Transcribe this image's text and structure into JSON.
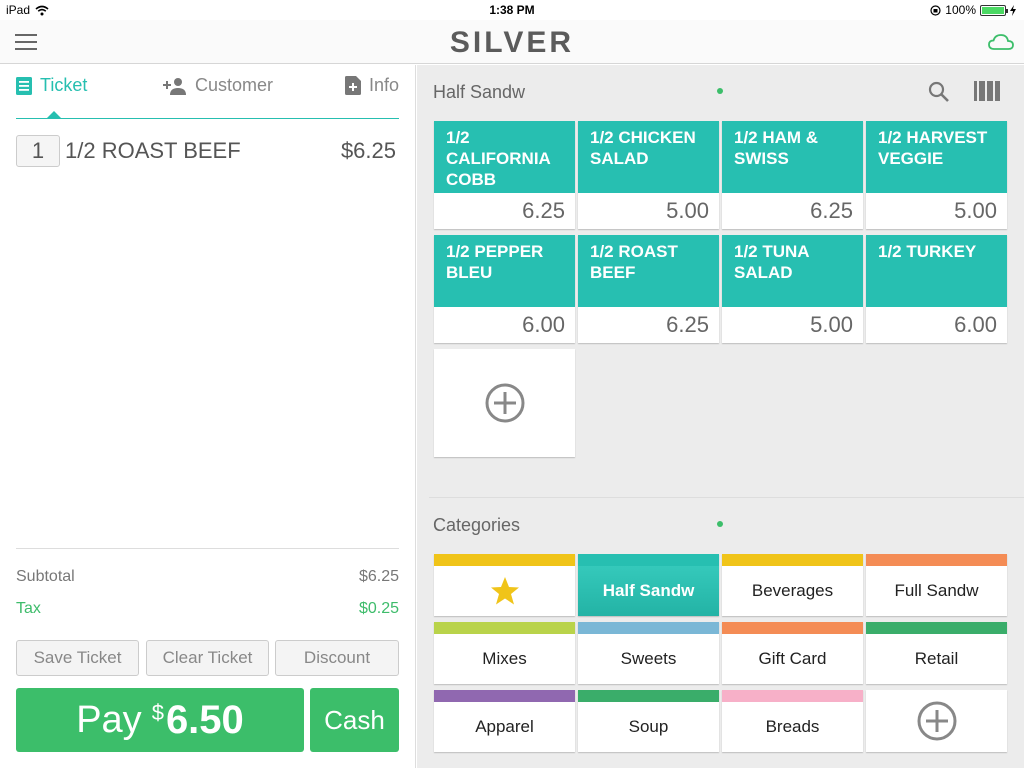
{
  "status_bar": {
    "device": "iPad",
    "time": "1:38 PM",
    "battery": "100%"
  },
  "nav": {
    "logo": "SILVER"
  },
  "tabs": [
    {
      "label": "Ticket",
      "icon": "list-icon",
      "active": true
    },
    {
      "label": "Customer",
      "icon": "add-person-icon",
      "active": false
    },
    {
      "label": "Info",
      "icon": "document-plus-icon",
      "active": false
    }
  ],
  "ticket": {
    "lines": [
      {
        "qty": "1",
        "name": "1/2 ROAST BEEF",
        "price": "$6.25"
      }
    ],
    "subtotal_label": "Subtotal",
    "subtotal": "$6.25",
    "tax_label": "Tax",
    "tax": "$0.25"
  },
  "actions": {
    "save": "Save Ticket",
    "clear": "Clear Ticket",
    "discount": "Discount"
  },
  "pay": {
    "label": "Pay",
    "currency": "$",
    "amount": "6.50",
    "cash": "Cash"
  },
  "products_section": {
    "title": "Half Sandw"
  },
  "products": [
    {
      "name": "1/2 CALIFORNIA COBB",
      "price": "6.25"
    },
    {
      "name": "1/2 CHICKEN SALAD",
      "price": "5.00"
    },
    {
      "name": "1/2 HAM & SWISS",
      "price": "6.25"
    },
    {
      "name": "1/2 HARVEST VEGGIE",
      "price": "5.00"
    },
    {
      "name": "1/2 PEPPER BLEU",
      "price": "6.00"
    },
    {
      "name": "1/2 ROAST BEEF",
      "price": "6.25"
    },
    {
      "name": "1/2 TUNA SALAD",
      "price": "5.00"
    },
    {
      "name": "1/2 TURKEY",
      "price": "6.00"
    }
  ],
  "categories_section": {
    "title": "Categories"
  },
  "categories": [
    {
      "label": "",
      "icon": "star-icon",
      "color": "#f0c419"
    },
    {
      "label": "Half Sandw",
      "color": "#27bfb1",
      "selected": true
    },
    {
      "label": "Beverages",
      "color": "#f0c419"
    },
    {
      "label": "Full Sandw",
      "color": "#f48c55"
    },
    {
      "label": "Mixes",
      "color": "#b9d34a"
    },
    {
      "label": "Sweets",
      "color": "#7ab7d6"
    },
    {
      "label": "Gift Card",
      "color": "#f48c55"
    },
    {
      "label": "Retail",
      "color": "#3aad6a"
    },
    {
      "label": "Apparel",
      "color": "#9068b0"
    },
    {
      "label": "Soup",
      "color": "#3aad6a"
    },
    {
      "label": "Breads",
      "color": "#f7b0c8"
    }
  ],
  "colors": {
    "teal": "#27bfb1",
    "green": "#3cbe6a"
  }
}
